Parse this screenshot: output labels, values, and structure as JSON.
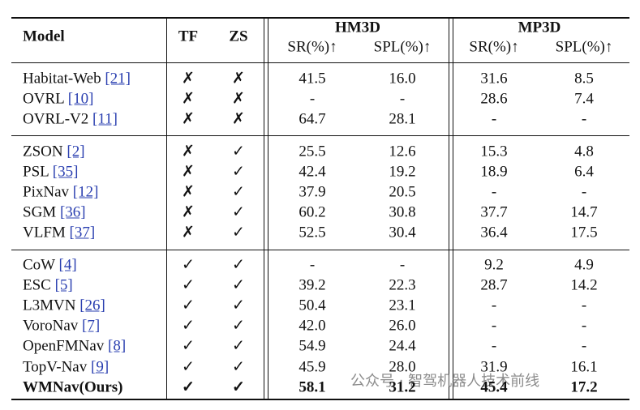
{
  "header": {
    "model": "Model",
    "tf": "TF",
    "zs": "ZS",
    "groups": [
      {
        "name": "HM3D",
        "metrics": [
          "SR(%)↑",
          "SPL(%)↑"
        ]
      },
      {
        "name": "MP3D",
        "metrics": [
          "SR(%)↑",
          "SPL(%)↑"
        ]
      }
    ]
  },
  "groups": [
    {
      "rows": [
        {
          "model": "Habitat-Web",
          "cite": "[21]",
          "tf": "✗",
          "zs": "✗",
          "values": [
            "41.5",
            "16.0",
            "31.6",
            "8.5"
          ]
        },
        {
          "model": "OVRL",
          "cite": "[10]",
          "tf": "✗",
          "zs": "✗",
          "values": [
            "-",
            "-",
            "28.6",
            "7.4"
          ]
        },
        {
          "model": "OVRL-V2",
          "cite": "[11]",
          "tf": "✗",
          "zs": "✗",
          "values": [
            "64.7",
            "28.1",
            "-",
            "-"
          ]
        }
      ]
    },
    {
      "rows": [
        {
          "model": "ZSON",
          "cite": "[2]",
          "tf": "✗",
          "zs": "✓",
          "values": [
            "25.5",
            "12.6",
            "15.3",
            "4.8"
          ]
        },
        {
          "model": "PSL",
          "cite": "[35]",
          "tf": "✗",
          "zs": "✓",
          "values": [
            "42.4",
            "19.2",
            "18.9",
            "6.4"
          ]
        },
        {
          "model": "PixNav",
          "cite": "[12]",
          "tf": "✗",
          "zs": "✓",
          "values": [
            "37.9",
            "20.5",
            "-",
            "-"
          ]
        },
        {
          "model": "SGM",
          "cite": "[36]",
          "tf": "✗",
          "zs": "✓",
          "values": [
            "60.2",
            "30.8",
            "37.7",
            "14.7"
          ]
        },
        {
          "model": "VLFM",
          "cite": "[37]",
          "tf": "✗",
          "zs": "✓",
          "values": [
            "52.5",
            "30.4",
            "36.4",
            "17.5"
          ]
        }
      ]
    },
    {
      "rows": [
        {
          "model": "CoW",
          "cite": "[4]",
          "tf": "✓",
          "zs": "✓",
          "values": [
            "-",
            "-",
            "9.2",
            "4.9"
          ]
        },
        {
          "model": "ESC",
          "cite": "[5]",
          "tf": "✓",
          "zs": "✓",
          "values": [
            "39.2",
            "22.3",
            "28.7",
            "14.2"
          ]
        },
        {
          "model": "L3MVN",
          "cite": "[26]",
          "tf": "✓",
          "zs": "✓",
          "values": [
            "50.4",
            "23.1",
            "-",
            "-"
          ]
        },
        {
          "model": "VoroNav",
          "cite": "[7]",
          "tf": "✓",
          "zs": "✓",
          "values": [
            "42.0",
            "26.0",
            "-",
            "-"
          ]
        },
        {
          "model": "OpenFMNav",
          "cite": "[8]",
          "tf": "✓",
          "zs": "✓",
          "values": [
            "54.9",
            "24.4",
            "-",
            "-"
          ]
        },
        {
          "model": "TopV-Nav",
          "cite": "[9]",
          "tf": "✓",
          "zs": "✓",
          "values": [
            "45.9",
            "28.0",
            "31.9",
            "16.1"
          ]
        },
        {
          "model": "WMNav(Ours)",
          "tf": "✓",
          "zs": "✓",
          "values": [
            "58.1",
            "31.2",
            "45.4",
            "17.2"
          ]
        }
      ]
    }
  ],
  "watermark": "公众号 · 智驾机器人技术前线"
}
